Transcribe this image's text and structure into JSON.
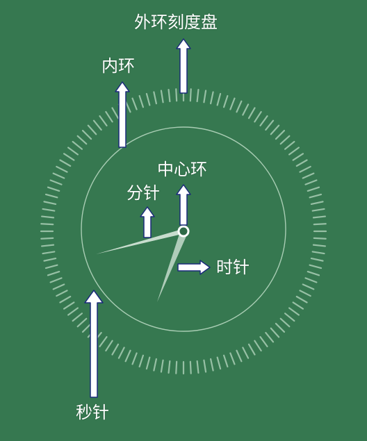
{
  "colors": {
    "background": "#367850",
    "ring": "#a9cdb4",
    "arrow_fill": "#ffffff",
    "arrow_stroke": "#1a2a7a",
    "hand": "#d8e8dc"
  },
  "labels": {
    "outer_dial": "外环刻度盘",
    "inner_ring": "内环",
    "center_ring": "中心环",
    "minute_hand": "分针",
    "hour_hand": "时针",
    "second_hand": "秒针"
  }
}
